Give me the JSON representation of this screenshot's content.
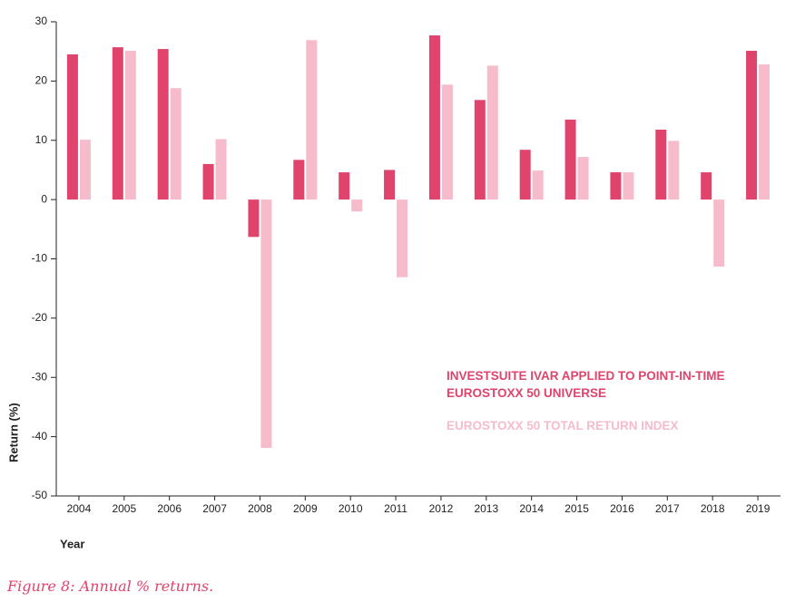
{
  "chart_data": {
    "type": "bar",
    "ylabel": "Return (%)",
    "xlabel": "Year",
    "caption": "Figure 8: Annual % returns.",
    "categories": [
      "2004",
      "2005",
      "2006",
      "2007",
      "2008",
      "2009",
      "2010",
      "2011",
      "2012",
      "2013",
      "2014",
      "2015",
      "2016",
      "2017",
      "2018",
      "2019"
    ],
    "series": [
      {
        "name": "INVESTSUITE IVAR APPLIED TO POINT-IN-TIME EUROSTOXX 50 UNIVERSE",
        "color": "#e0436b",
        "values": [
          24.5,
          25.7,
          25.4,
          6.0,
          -6.3,
          6.7,
          4.6,
          5.0,
          27.7,
          16.8,
          8.4,
          13.5,
          4.6,
          11.8,
          4.6,
          25.1
        ]
      },
      {
        "name": "EUROSTOXX 50 TOTAL RETURN INDEX",
        "color": "#f7bccb",
        "values": [
          10.1,
          25.1,
          18.8,
          10.2,
          -41.9,
          26.9,
          -2.0,
          -13.1,
          19.4,
          22.6,
          4.9,
          7.2,
          4.6,
          9.9,
          -11.3,
          22.8
        ]
      }
    ],
    "ylim": [
      -50,
      30
    ],
    "yticks": [
      -50,
      -40,
      -30,
      -20,
      -10,
      0,
      10,
      20,
      30
    ],
    "legend": "lower right"
  }
}
